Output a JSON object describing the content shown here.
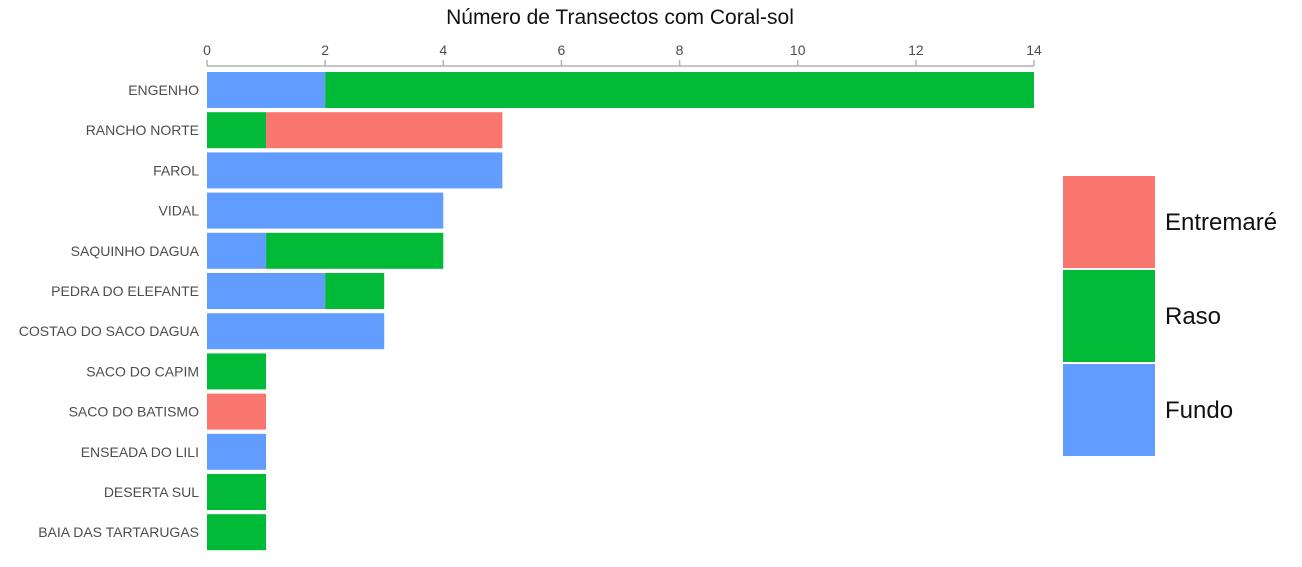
{
  "chart_data": {
    "type": "bar",
    "orientation": "horizontal",
    "stacked": true,
    "title": "Número de Transectos com Coral-sol",
    "x_axis_position": "top",
    "xlim": [
      0,
      14
    ],
    "xticks": [
      "0",
      "2",
      "4",
      "6",
      "8",
      "10",
      "12",
      "14"
    ],
    "grid": false,
    "legend_position": "right",
    "categories": [
      "ENGENHO",
      "RANCHO NORTE",
      "FAROL",
      "VIDAL",
      "SAQUINHO DAGUA",
      "PEDRA DO ELEFANTE",
      "COSTAO DO SACO DAGUA",
      "SACO DO CAPIM",
      "SACO DO BATISMO",
      "ENSEADA DO LILI",
      "DESERTA SUL",
      "BAIA DAS TARTARUGAS"
    ],
    "series": [
      {
        "name": "Fundo",
        "color": "#619CFF",
        "values": [
          2,
          0,
          5,
          4,
          1,
          2,
          3,
          0,
          0,
          1,
          0,
          0
        ]
      },
      {
        "name": "Raso",
        "color": "#00BA38",
        "values": [
          12,
          1,
          0,
          0,
          3,
          1,
          0,
          1,
          0,
          0,
          1,
          1
        ]
      },
      {
        "name": "Entremaré",
        "color": "#F8766D",
        "values": [
          0,
          4,
          0,
          0,
          0,
          0,
          0,
          0,
          1,
          0,
          0,
          0
        ]
      }
    ],
    "legend_order": [
      "Entremaré",
      "Raso",
      "Fundo"
    ]
  }
}
